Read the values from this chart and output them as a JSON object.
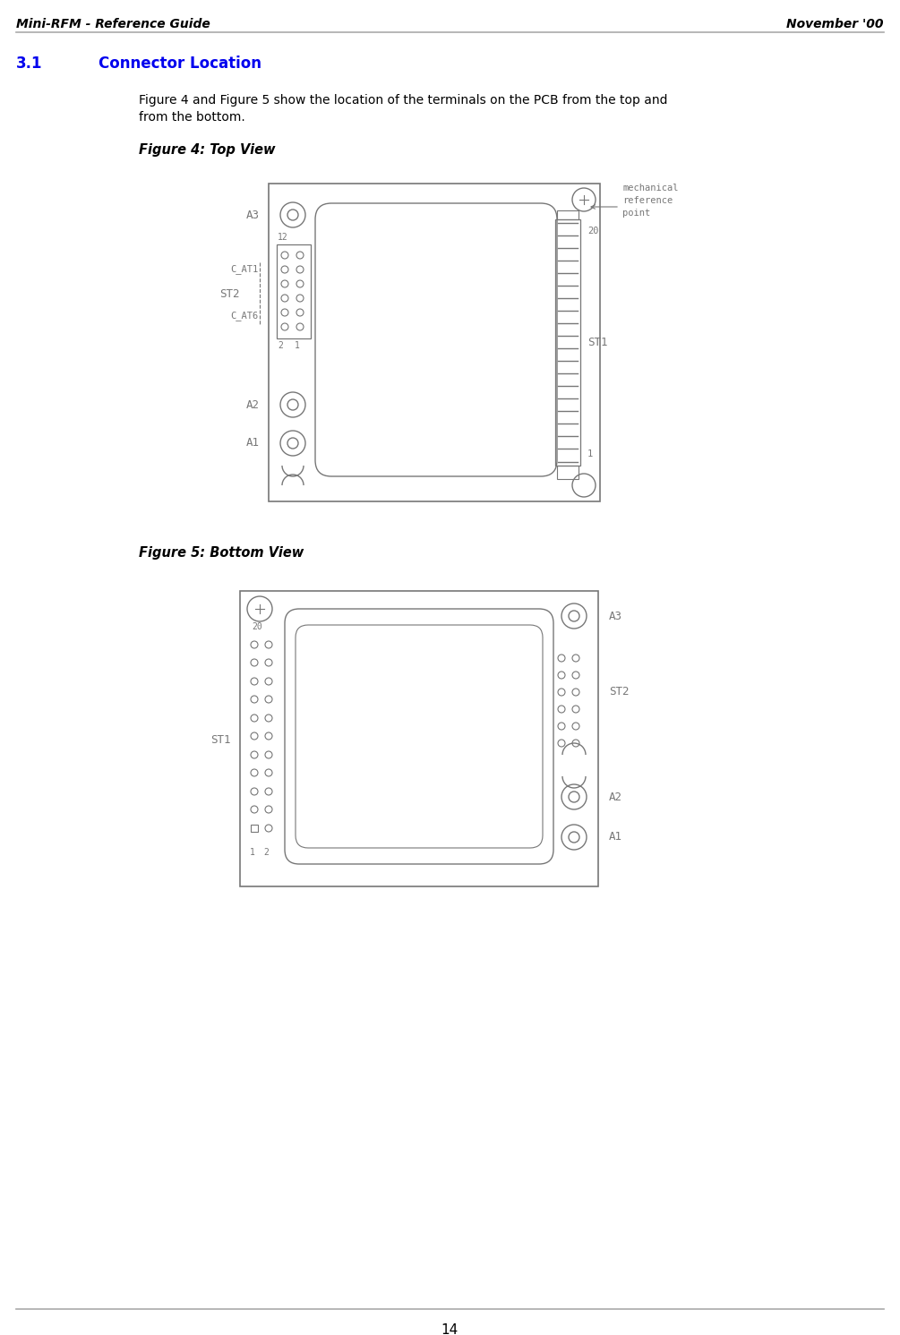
{
  "header_left": "Mini-RFM - Reference Guide",
  "header_right": "November '00",
  "section": "3.1",
  "section_title": "Connector Location",
  "body_text_1": "Figure 4 and Figure 5 show the location of the terminals on the PCB from the top and",
  "body_text_2": "from the bottom.",
  "fig4_title": "Figure 4: Top View",
  "fig5_title": "Figure 5: Bottom View",
  "page_number": "14",
  "header_line_color": "#aaaaaa",
  "footer_line_color": "#aaaaaa",
  "section_color": "#0000ee",
  "text_color": "#000000",
  "diagram_color": "#777777",
  "bg_color": "#ffffff"
}
